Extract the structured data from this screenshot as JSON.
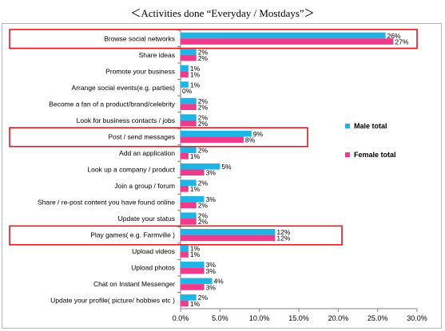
{
  "chart_data": {
    "type": "bar",
    "orientation": "horizontal",
    "title": "＜Activities done “Everyday / Mostdays”＞",
    "categories": [
      "Browse social networks",
      "Share ideas",
      "Promote your business",
      "Arrange social events(e.g. parties)",
      "Become a fan of a product/brand/celebrity",
      "Look for business contacts / jobs",
      "Post / send messages",
      "Add an application",
      "Look up a company / product",
      "Join a group / forum",
      "Share / re-post content you have found online",
      "Update your status",
      "Play games( e.g. Farmville )",
      "Upload videos",
      "Upload photos",
      "Chat on Instant Messenger",
      "Update your profile( picture/ hobbies etc )"
    ],
    "series": [
      {
        "name": "Male total",
        "color": "#1fb4e6",
        "values": [
          26,
          2,
          1,
          1,
          2,
          2,
          9,
          2,
          5,
          2,
          3,
          2,
          12,
          1,
          3,
          4,
          2
        ],
        "labels": [
          "26%",
          "2%",
          "1%",
          "1%",
          "2%",
          "2%",
          "9%",
          "2%",
          "5%",
          "2%",
          "3%",
          "2%",
          "12%",
          "1%",
          "3%",
          "4%",
          "2%"
        ]
      },
      {
        "name": "Female total",
        "color": "#ef3b8c",
        "values": [
          27,
          2,
          1,
          0,
          2,
          2,
          8,
          1,
          3,
          1,
          2,
          2,
          12,
          1,
          3,
          3,
          1
        ],
        "labels": [
          "27%",
          "2%",
          "1%",
          "0%",
          "2%",
          "2%",
          "8%",
          "1%",
          "3%",
          "1%",
          "2%",
          "2%",
          "12%",
          "1%",
          "3%",
          "3%",
          "1%"
        ]
      }
    ],
    "xlim": [
      0,
      30
    ],
    "xticks": [
      "0.0%",
      "5.0%",
      "10.0%",
      "15.0%",
      "20.0%",
      "25.0%",
      "30.0%"
    ],
    "grid": false,
    "legend": "right",
    "highlighted_categories": [
      "Browse social networks",
      "Post / send messages",
      "Play games( e.g. Farmville )"
    ],
    "highlight_color": "#e8141b"
  }
}
